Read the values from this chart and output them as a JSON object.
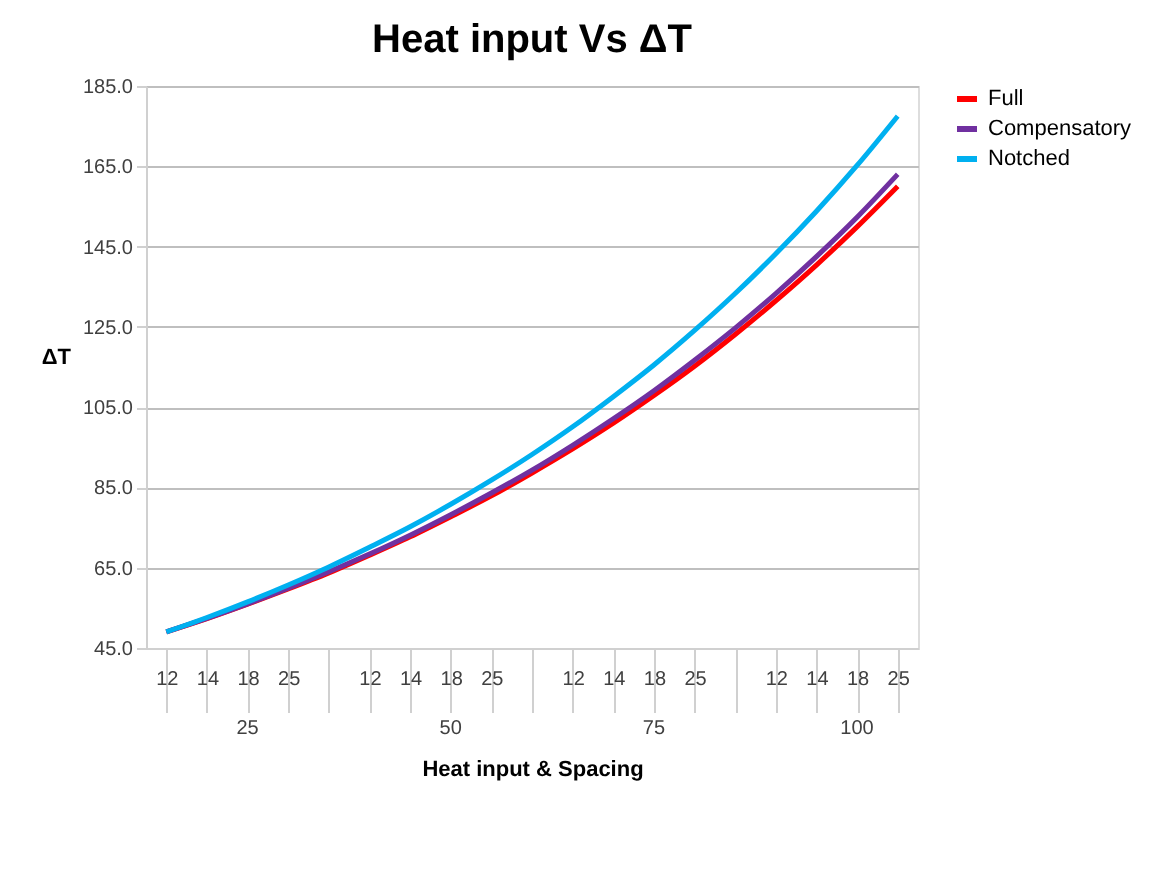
{
  "chart_data": {
    "type": "line",
    "title": "Heat input Vs ΔT",
    "xlabel": "Heat input & Spacing",
    "ylabel": "ΔT",
    "categories": [
      "12",
      "14",
      "18",
      "25",
      null,
      "12",
      "14",
      "18",
      "25",
      null,
      "12",
      "14",
      "18",
      "25",
      null,
      "12",
      "14",
      "18",
      "25"
    ],
    "annotations": [
      "25",
      "50",
      "75",
      "100"
    ],
    "series": [
      {
        "name": "Full",
        "color": "#ff0000",
        "values": [
          49,
          52.3,
          55.9,
          59.7,
          63.7,
          68.1,
          72.7,
          77.7,
          82.9,
          88.6,
          94.6,
          101,
          107.9,
          115.2,
          123.1,
          131.5,
          140.4,
          149.9,
          160
        ]
      },
      {
        "name": "Compensatory",
        "color": "#7030a0",
        "values": [
          49,
          52.4,
          56,
          59.9,
          64,
          68.4,
          73.1,
          78.2,
          83.6,
          89.3,
          95.5,
          102.1,
          109.1,
          116.7,
          124.7,
          133.3,
          142.5,
          152.3,
          163
        ]
      },
      {
        "name": "Notched",
        "color": "#00b0f0",
        "values": [
          49,
          52.6,
          56.5,
          60.7,
          65.2,
          70.1,
          75.2,
          80.8,
          86.8,
          93.2,
          100.1,
          107.6,
          115.5,
          124.1,
          133.3,
          143.2,
          153.8,
          165.2,
          177.5
        ]
      }
    ],
    "ylim": [
      45,
      185
    ],
    "yticks": [
      {
        "value": 45,
        "label": "45.0"
      },
      {
        "value": 65,
        "label": "65.0"
      },
      {
        "value": 85,
        "label": "85.0"
      },
      {
        "value": 105,
        "label": "105.0"
      },
      {
        "value": 125,
        "label": "125.0"
      },
      {
        "value": 145,
        "label": "145.0"
      },
      {
        "value": 165,
        "label": "165.0"
      },
      {
        "value": 185,
        "label": "185.0"
      }
    ],
    "grid": "y",
    "legend": "right",
    "marker": "none",
    "line_style": "solid"
  }
}
